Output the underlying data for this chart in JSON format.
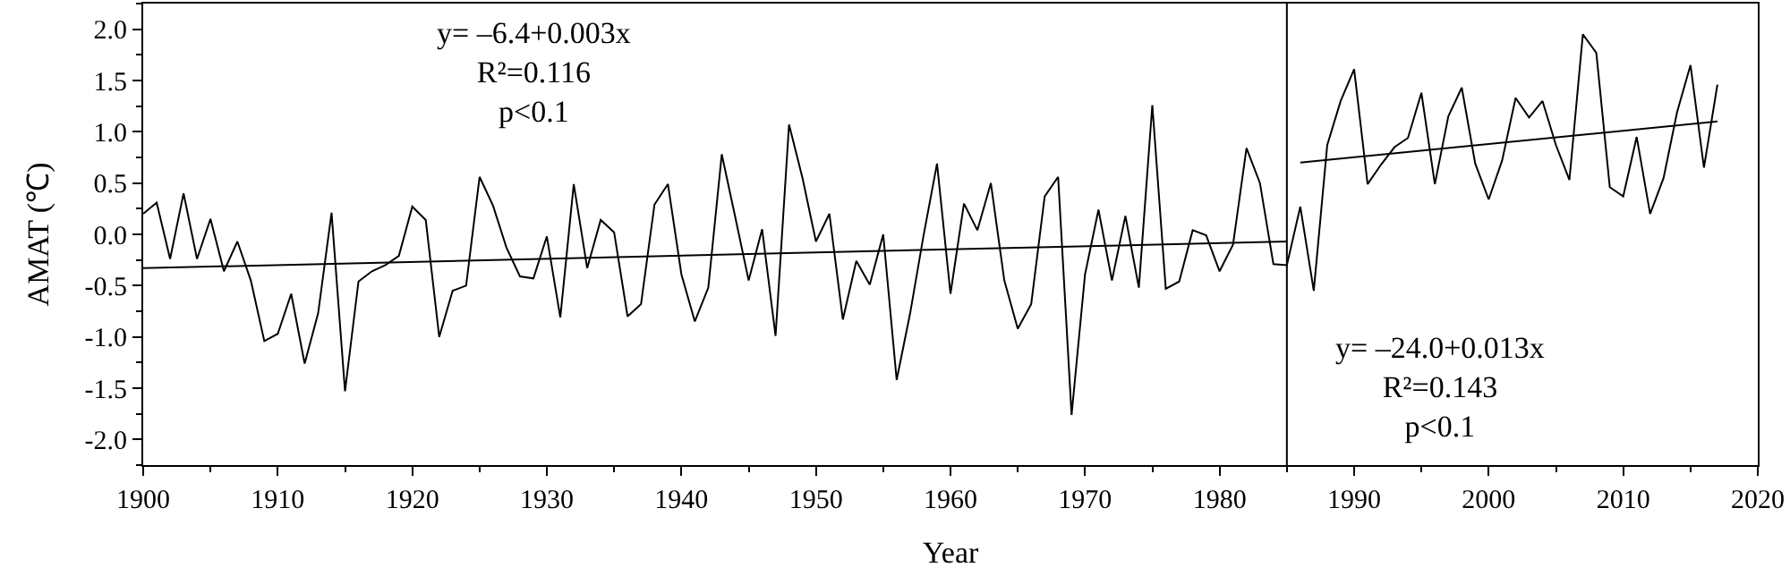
{
  "chart_data": {
    "type": "line",
    "xlabel": "Year",
    "ylabel": "AMAT (℃)",
    "x": [
      1900,
      1901,
      1902,
      1903,
      1904,
      1905,
      1906,
      1907,
      1908,
      1909,
      1910,
      1911,
      1912,
      1913,
      1914,
      1915,
      1916,
      1917,
      1918,
      1919,
      1920,
      1921,
      1922,
      1923,
      1924,
      1925,
      1926,
      1927,
      1928,
      1929,
      1930,
      1931,
      1932,
      1933,
      1934,
      1935,
      1936,
      1937,
      1938,
      1939,
      1940,
      1941,
      1942,
      1943,
      1944,
      1945,
      1946,
      1947,
      1948,
      1949,
      1950,
      1951,
      1952,
      1953,
      1954,
      1955,
      1956,
      1957,
      1958,
      1959,
      1960,
      1961,
      1962,
      1963,
      1964,
      1965,
      1966,
      1967,
      1968,
      1969,
      1970,
      1971,
      1972,
      1973,
      1974,
      1975,
      1976,
      1977,
      1978,
      1979,
      1980,
      1981,
      1982,
      1983,
      1984,
      1985,
      1986,
      1987,
      1988,
      1989,
      1990,
      1991,
      1992,
      1993,
      1994,
      1995,
      1996,
      1997,
      1998,
      1999,
      2000,
      2001,
      2002,
      2003,
      2004,
      2005,
      2006,
      2007,
      2008,
      2009,
      2010,
      2011,
      2012,
      2013,
      2014,
      2015,
      2016,
      2017
    ],
    "series": [
      {
        "color": "#000000",
        "values": [
          0.2,
          0.31,
          -0.24,
          0.4,
          -0.24,
          0.15,
          -0.36,
          -0.07,
          -0.45,
          -1.04,
          -0.97,
          -0.58,
          -1.26,
          -0.77,
          0.21,
          -1.53,
          -0.46,
          -0.36,
          -0.3,
          -0.21,
          0.27,
          0.14,
          -1.0,
          -0.55,
          -0.5,
          0.56,
          0.28,
          -0.13,
          -0.41,
          -0.43,
          -0.02,
          -0.81,
          0.49,
          -0.33,
          0.14,
          0.02,
          -0.8,
          -0.68,
          0.29,
          0.49,
          -0.39,
          -0.85,
          -0.52,
          0.78,
          0.17,
          -0.45,
          0.05,
          -0.99,
          1.07,
          0.55,
          -0.07,
          0.2,
          -0.83,
          -0.26,
          -0.49,
          0.0,
          -1.42,
          -0.77,
          -0.01,
          0.69,
          -0.58,
          0.3,
          0.04,
          0.5,
          -0.45,
          -0.92,
          -0.68,
          0.37,
          0.56,
          -1.76,
          -0.39,
          0.24,
          -0.45,
          0.18,
          -0.52,
          1.26,
          -0.53,
          -0.46,
          0.04,
          -0.01,
          -0.36,
          -0.1,
          0.84,
          0.5,
          -0.29,
          -0.3,
          0.27,
          -0.55,
          0.87,
          1.3,
          1.61,
          0.49,
          0.68,
          0.85,
          0.94,
          1.38,
          0.49,
          1.15,
          1.43,
          0.69,
          0.34,
          0.72,
          1.33,
          1.14,
          1.3,
          0.87,
          0.53,
          1.95,
          1.77,
          0.46,
          0.37,
          0.95,
          0.2,
          0.55,
          1.19,
          1.65,
          0.65,
          1.46
        ]
      },
      {
        "type": "line",
        "color": "#000000",
        "x": [
          1900,
          1985
        ],
        "values": [
          -0.33,
          -0.07
        ]
      },
      {
        "type": "line",
        "color": "#000000",
        "x": [
          1986,
          2017
        ],
        "values": [
          0.7,
          1.1
        ]
      }
    ],
    "ref_lines": [
      {
        "axis": "x",
        "value": 1985,
        "color": "#000000"
      }
    ],
    "annotations": [
      "y= –6.4+0.003x\nR²=0.116\np<0.1",
      "y= –24.0+0.013x\nR²=0.143\np<0.1"
    ],
    "xlim": [
      1900,
      2020
    ],
    "xticks": [
      1900,
      1910,
      1920,
      1930,
      1940,
      1950,
      1960,
      1970,
      1980,
      1990,
      2000,
      2010,
      2020
    ],
    "ylim": [
      -2.25,
      2.25
    ],
    "yticks": [
      {
        "value": -2,
        "label": "-2.0"
      },
      {
        "value": -1.5,
        "label": "-1.5"
      },
      {
        "value": -1,
        "label": "-1.0"
      },
      {
        "value": -0.5,
        "label": "-0.5"
      },
      {
        "value": 0,
        "label": "0.0"
      },
      {
        "value": 0.5,
        "label": "0.5"
      },
      {
        "value": 1,
        "label": "1.0"
      },
      {
        "value": 1.5,
        "label": "1.5"
      },
      {
        "value": 2,
        "label": "2.0"
      }
    ],
    "marker": "none",
    "line_style": "solid"
  }
}
